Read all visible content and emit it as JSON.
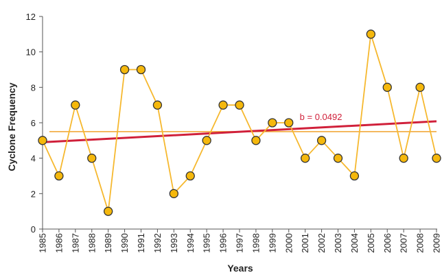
{
  "chart_data": {
    "type": "line",
    "title": "",
    "xlabel": "Years",
    "ylabel": "Cyclone Frequency",
    "x": [
      "1985",
      "1986",
      "1987",
      "1988",
      "1989",
      "1990",
      "1991",
      "1992",
      "1993",
      "1994",
      "1995",
      "1996",
      "1997",
      "1998",
      "1999",
      "2000",
      "2001",
      "2002",
      "2003",
      "2004",
      "2005",
      "2006",
      "2007",
      "2008",
      "2009"
    ],
    "series": [
      {
        "values": [
          5,
          3,
          7,
          4,
          1,
          9,
          9,
          7,
          2,
          3,
          5,
          7,
          7,
          5,
          6,
          6,
          4,
          5,
          4,
          3,
          11,
          8,
          4,
          8,
          4
        ]
      }
    ],
    "trend_line": {
      "start": 4.9,
      "end": 6.08,
      "color": "#d0203a"
    },
    "mean_line": {
      "value": 5.5,
      "color": "#f2a83a"
    },
    "annotation": {
      "text": "b = 0.0492",
      "color": "#d0203a"
    },
    "ylim": [
      0,
      12
    ],
    "yticks": [
      "0",
      "2",
      "4",
      "6",
      "8",
      "10",
      "12"
    ],
    "grid": false,
    "colors": {
      "line": "#f6b82e",
      "marker_fill": "#f5b80c",
      "marker_stroke": "#333333",
      "axis": "#555555"
    }
  }
}
